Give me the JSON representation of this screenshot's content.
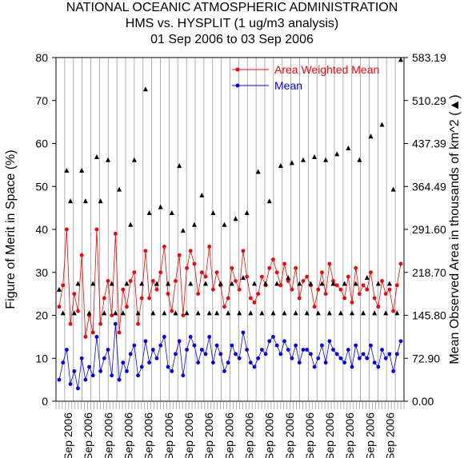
{
  "chart_data": {
    "type": "scatter",
    "title": "NATIONAL OCEANIC ATMOSPHERIC ADMINISTRATION",
    "subtitle": "HMS vs. HYSPLIT (1 ug/m3 analysis)",
    "date_range": "01 Sep 2006 to 03 Sep 2006",
    "ylabel": "Figure of Merit in Space (%)",
    "y2label": "Mean Observed Area in thousands of km^2 (▲)",
    "ylim": [
      0,
      80
    ],
    "y2lim": [
      0,
      583.19
    ],
    "yticks": [
      "0",
      "10",
      "20",
      "30",
      "40",
      "50",
      "60",
      "70",
      "80"
    ],
    "y2ticks": [
      "0.00",
      "72.90",
      "145.80",
      "218.70",
      "291.60",
      "364.49",
      "437.39",
      "510.29",
      "583.19"
    ],
    "xtick_label": "Sep 2006",
    "xtick_count": 17,
    "legend_position": "top-right",
    "colors": {
      "area_weighted": "#ff0000",
      "mean": "#0000ff",
      "observed_area": "#000000",
      "grid": "#999999"
    },
    "series": [
      {
        "name": "Area Weighted Mean",
        "values": [
          22,
          27,
          40,
          18,
          25,
          21,
          34,
          15,
          20,
          16,
          40,
          18,
          24,
          28,
          20,
          39,
          16,
          26,
          22,
          28,
          30,
          18,
          24,
          35,
          24,
          28,
          26,
          30,
          36,
          25,
          21,
          28,
          34,
          20,
          31,
          35,
          32,
          25,
          30,
          29,
          36,
          26,
          30,
          27,
          22,
          24,
          31,
          28,
          26,
          35,
          29,
          24,
          23,
          25,
          29,
          27,
          31,
          33,
          30,
          27,
          32,
          28,
          26,
          31,
          24,
          28,
          29,
          27,
          22,
          26,
          30,
          25,
          32,
          28,
          27,
          26,
          24,
          29,
          23,
          31,
          25,
          27,
          26,
          30,
          24,
          22,
          28,
          25,
          26,
          21,
          27,
          32
        ]
      },
      {
        "name": "Mean",
        "values": [
          5,
          9,
          12,
          4,
          7,
          3,
          10,
          5,
          8,
          6,
          15,
          7,
          10,
          12,
          6,
          18,
          5,
          9,
          7,
          11,
          13,
          6,
          8,
          14,
          9,
          12,
          10,
          13,
          15,
          8,
          7,
          11,
          14,
          6,
          12,
          15,
          13,
          9,
          12,
          11,
          15,
          9,
          13,
          11,
          7,
          9,
          13,
          11,
          10,
          16,
          12,
          9,
          8,
          10,
          12,
          11,
          14,
          15,
          13,
          11,
          14,
          12,
          10,
          13,
          9,
          12,
          12,
          11,
          8,
          10,
          13,
          9,
          14,
          12,
          11,
          10,
          9,
          12,
          8,
          13,
          10,
          11,
          10,
          13,
          9,
          8,
          12,
          10,
          11,
          7,
          11,
          14
        ]
      },
      {
        "name": "Mean Observed Area",
        "values": [
          190,
          150,
          392,
          340,
          150,
          200,
          392,
          340,
          150,
          200,
          415,
          340,
          150,
          410,
          200,
          150,
          360,
          150,
          200,
          300,
          410,
          150,
          200,
          530,
          320,
          150,
          200,
          330,
          150,
          200,
          320,
          150,
          400,
          290,
          150,
          200,
          300,
          150,
          350,
          200,
          150,
          320,
          150,
          200,
          300,
          150,
          200,
          310,
          150,
          210,
          320,
          150,
          200,
          390,
          150,
          200,
          340,
          150,
          200,
          400,
          150,
          210,
          405,
          150,
          200,
          410,
          150,
          200,
          415,
          150,
          200,
          410,
          150,
          200,
          420,
          150,
          200,
          430,
          150,
          200,
          410,
          150,
          210,
          450,
          150,
          200,
          470,
          150,
          200,
          360,
          150,
          580
        ]
      }
    ]
  }
}
